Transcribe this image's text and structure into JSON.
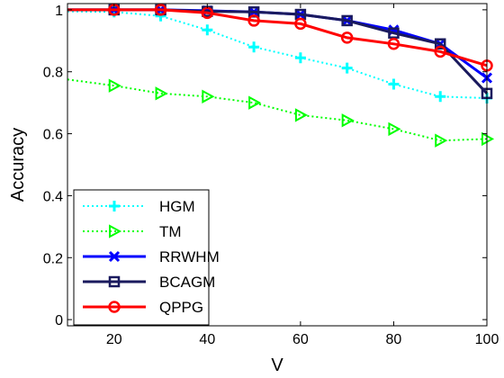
{
  "chart_data": {
    "type": "line",
    "xlabel": "V",
    "ylabel": "Accuracy",
    "xlim": [
      10,
      100
    ],
    "ylim": [
      -0.02,
      1.02
    ],
    "x_ticks": [
      20,
      40,
      60,
      80,
      100
    ],
    "y_ticks": [
      0,
      0.2,
      0.4,
      0.6,
      0.8,
      1
    ],
    "x_tick_labels": [
      "20",
      "40",
      "60",
      "80",
      "100"
    ],
    "y_tick_labels": [
      "0",
      "0.2",
      "0.4",
      "0.6",
      "0.8",
      "1"
    ],
    "grid": false,
    "legend_position": "bottom-left",
    "x": [
      10,
      20,
      30,
      40,
      50,
      60,
      70,
      80,
      90,
      100
    ],
    "series": [
      {
        "name": "HGM",
        "color": "#00ffff",
        "line": "dotted",
        "marker": "plus",
        "marker_x": [
          20,
          30,
          40,
          50,
          60,
          70,
          80,
          90,
          100
        ],
        "values": [
          0.995,
          0.993,
          0.98,
          0.935,
          0.88,
          0.845,
          0.812,
          0.76,
          0.72,
          0.715
        ]
      },
      {
        "name": "TM",
        "color": "#00ff00",
        "line": "dotted",
        "marker": "triangle-right",
        "marker_x": [
          20,
          30,
          40,
          50,
          60,
          70,
          80,
          90,
          100
        ],
        "values": [
          0.775,
          0.755,
          0.73,
          0.72,
          0.7,
          0.66,
          0.643,
          0.615,
          0.578,
          0.583
        ]
      },
      {
        "name": "RRWHM",
        "color": "#0000ff",
        "line": "solid",
        "marker": "x",
        "marker_x": [
          20,
          30,
          40,
          50,
          60,
          70,
          80,
          90,
          100
        ],
        "values": [
          1.0,
          1.0,
          1.0,
          0.997,
          0.993,
          0.985,
          0.965,
          0.935,
          0.89,
          0.78
        ]
      },
      {
        "name": "BCAGM",
        "color": "#1a1a5e",
        "line": "solid",
        "marker": "square",
        "marker_x": [
          20,
          30,
          40,
          50,
          60,
          70,
          80,
          90,
          100
        ],
        "values": [
          1.0,
          1.0,
          1.0,
          0.995,
          0.993,
          0.985,
          0.965,
          0.925,
          0.89,
          0.73
        ]
      },
      {
        "name": "QPPG",
        "color": "#ff0000",
        "line": "solid",
        "marker": "circle",
        "marker_x": [
          20,
          30,
          40,
          50,
          60,
          70,
          80,
          90,
          100
        ],
        "values": [
          1.0,
          1.0,
          1.0,
          0.99,
          0.965,
          0.955,
          0.91,
          0.89,
          0.865,
          0.82
        ]
      }
    ]
  }
}
